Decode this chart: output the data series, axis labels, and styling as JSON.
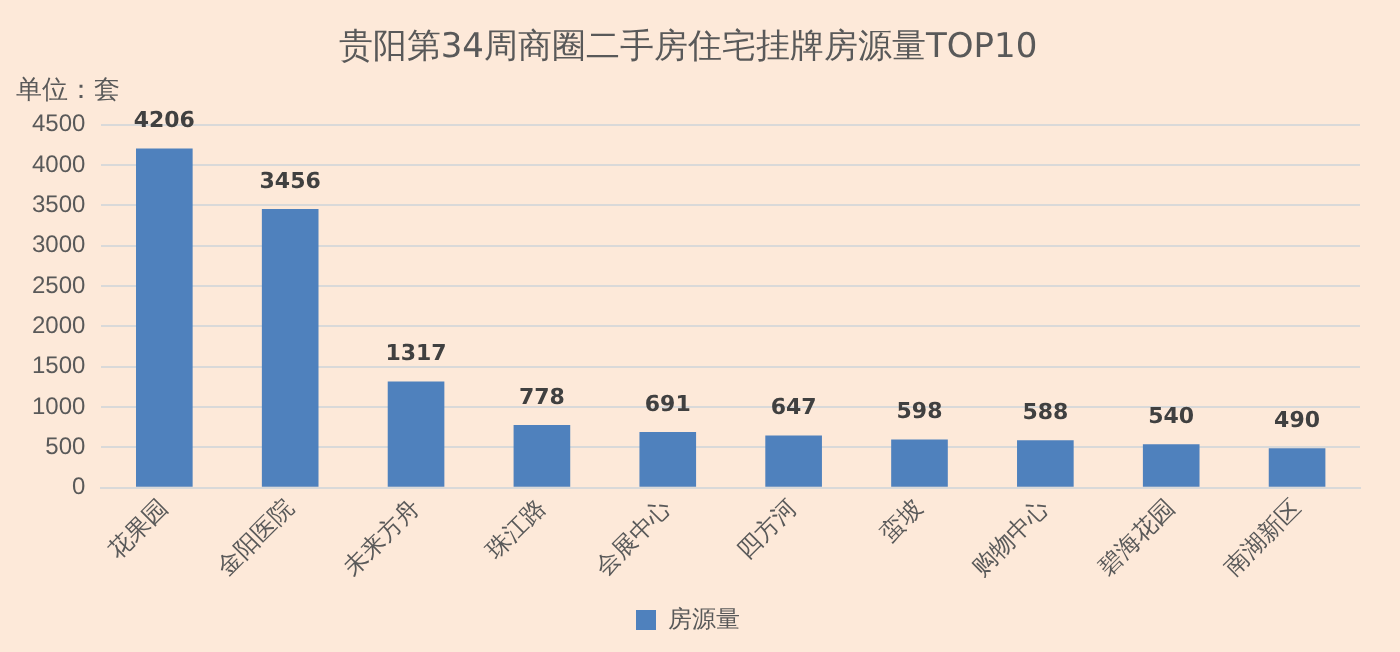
{
  "chart_data": {
    "type": "bar",
    "title": "贵阳第34周商圈二手房住宅挂牌房源量TOP10",
    "ylabel": "单位：套",
    "categories": [
      "花果园",
      "金阳医院",
      "未来方舟",
      "珠江路",
      "会展中心",
      "四方河",
      "蛮坡",
      "购物中心",
      "碧海花园",
      "南湖新区"
    ],
    "series": [
      {
        "name": "房源量",
        "color": "#4f81bd",
        "values": [
          4206,
          3456,
          1317,
          778,
          691,
          647,
          598,
          588,
          540,
          490
        ]
      }
    ],
    "ylim": [
      0,
      4500
    ],
    "yticks": [
      0,
      500,
      1000,
      1500,
      2000,
      2500,
      3000,
      3500,
      4000,
      4500
    ],
    "grid": "y",
    "legend": "bottom",
    "data_labels": true
  }
}
